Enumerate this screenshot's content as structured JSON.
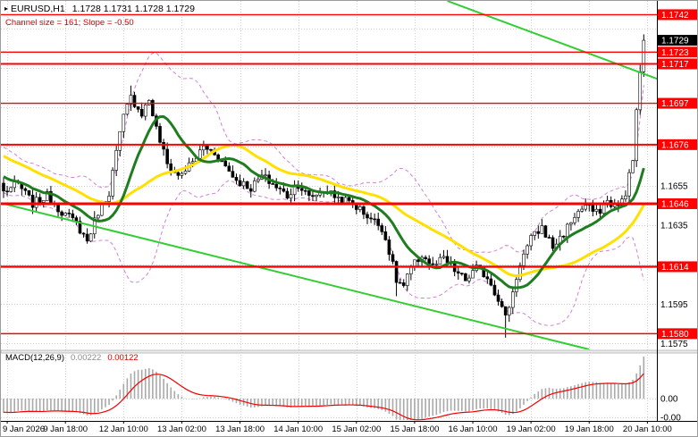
{
  "legend": {
    "symbol": "EURUSD,H1",
    "ohlc": "1.1728 1.1731 1.1728 1.1729",
    "annotation": "Channel size = 161; Slope = -0.50"
  },
  "colors": {
    "level": "#fe0000",
    "trend": "#32cd32",
    "grid": "#cfcfcf",
    "macd_hist": "#a9a9a9",
    "macd_signal": "#f40000"
  },
  "chart_data": {
    "type": "candlestick",
    "symbol": "EURUSD",
    "timeframe": "H1",
    "title": "EURUSD,H1",
    "ohlc_display": {
      "open": "1.1728",
      "high": "1.1731",
      "low": "1.1728",
      "close": "1.1729"
    },
    "x_labels": [
      "9 Jan 2026",
      "9 Jan 18:00",
      "12 Jan 10:00",
      "13 Jan 02:00",
      "13 Jan 18:00",
      "14 Jan 10:00",
      "15 Jan 02:00",
      "15 Jan 18:00",
      "16 Jan 10:00",
      "19 Jan 02:00",
      "19 Jan 18:00",
      "20 Jan 10:00"
    ],
    "y_axis_ticks": [
      "1.1655",
      "1.1635",
      "1.1595",
      "1.1575"
    ],
    "price_range": {
      "top": 1.1749,
      "bottom": 1.1572
    },
    "bars_total": 177,
    "current_price": 1.1729,
    "current_price_label": "1.1729",
    "levels": [
      {
        "label": "1.1742",
        "price": 1.1742,
        "width": 1.4
      },
      {
        "label": "1.1723",
        "price": 1.1723,
        "width": 1.4
      },
      {
        "label": "1.1717",
        "price": 1.1717,
        "width": 2
      },
      {
        "label": "1.1697",
        "price": 1.1697,
        "width": 1.4
      },
      {
        "label": "1.1676",
        "price": 1.1676,
        "width": 2
      },
      {
        "label": "1.1646",
        "price": 1.1646,
        "width": 3
      },
      {
        "label": "1.1614",
        "price": 1.1614,
        "width": 2.4
      },
      {
        "label": "1.1580",
        "price": 1.158,
        "width": 1.4
      }
    ],
    "price_path": [
      [
        0,
        1.1652
      ],
      [
        4,
        1.1656
      ],
      [
        8,
        1.1646
      ],
      [
        12,
        1.165
      ],
      [
        16,
        1.1642
      ],
      [
        20,
        1.1636
      ],
      [
        23,
        1.1627
      ],
      [
        26,
        1.1642
      ],
      [
        29,
        1.1652
      ],
      [
        31,
        1.1672
      ],
      [
        33,
        1.169
      ],
      [
        35,
        1.17
      ],
      [
        38,
        1.1692
      ],
      [
        40,
        1.1699
      ],
      [
        42,
        1.1684
      ],
      [
        45,
        1.1666
      ],
      [
        48,
        1.166
      ],
      [
        52,
        1.1667
      ],
      [
        55,
        1.1675
      ],
      [
        58,
        1.1672
      ],
      [
        61,
        1.1665
      ],
      [
        64,
        1.1658
      ],
      [
        68,
        1.1654
      ],
      [
        71,
        1.166
      ],
      [
        74,
        1.1656
      ],
      [
        78,
        1.165
      ],
      [
        81,
        1.1656
      ],
      [
        84,
        1.1649
      ],
      [
        88,
        1.1653
      ],
      [
        92,
        1.1649
      ],
      [
        96,
        1.1646
      ],
      [
        100,
        1.164
      ],
      [
        104,
        1.1634
      ],
      [
        106,
        1.1622
      ],
      [
        108,
        1.1607
      ],
      [
        110,
        1.1604
      ],
      [
        112,
        1.1613
      ],
      [
        115,
        1.162
      ],
      [
        118,
        1.1614
      ],
      [
        121,
        1.1618
      ],
      [
        124,
        1.1612
      ],
      [
        127,
        1.1607
      ],
      [
        130,
        1.1613
      ],
      [
        133,
        1.1609
      ],
      [
        136,
        1.1598
      ],
      [
        138,
        1.1588
      ],
      [
        140,
        1.1601
      ],
      [
        142,
        1.1616
      ],
      [
        145,
        1.1628
      ],
      [
        148,
        1.1634
      ],
      [
        151,
        1.1624
      ],
      [
        154,
        1.1631
      ],
      [
        157,
        1.164
      ],
      [
        160,
        1.1645
      ],
      [
        163,
        1.1641
      ],
      [
        166,
        1.1647
      ],
      [
        169,
        1.1644
      ],
      [
        171,
        1.1652
      ],
      [
        173,
        1.1668
      ],
      [
        174,
        1.1694
      ],
      [
        175,
        1.1713
      ],
      [
        176,
        1.1729
      ]
    ],
    "wick_extremes": [
      {
        "bar": 35,
        "high": 1.1706
      },
      {
        "bar": 108,
        "low": 1.1599
      },
      {
        "bar": 138,
        "low": 1.1578
      },
      {
        "bar": 176,
        "high": 1.1731
      }
    ],
    "trendlines": [
      {
        "name": "descending-resistance",
        "from": {
          "bar": 122,
          "price": 1.1749
        },
        "to": {
          "bar": 192,
          "price": 1.1701
        }
      },
      {
        "name": "channel-lower",
        "from": {
          "bar": 0,
          "price": 1.1646
        },
        "to": {
          "bar": 161,
          "price": 1.1572
        }
      }
    ],
    "moving_averages": [
      {
        "name": "slow-yellow",
        "period": 34,
        "color": "#ffe000"
      },
      {
        "name": "fast-green",
        "period": 13,
        "color": "#1e7d1e"
      }
    ],
    "bollinger": {
      "period": 20,
      "deviation": 2,
      "color": "#d281d2"
    },
    "history_seed": {
      "bars": 40,
      "from": 1.1694,
      "to": 1.1655
    },
    "macd": {
      "label": "MACD(12,26,9)",
      "main": "0.00222",
      "signal": "0.00122",
      "scale": [
        {
          "label": "0.00",
          "value": 0
        },
        {
          "label": "-0.00",
          "value": -0.001
        }
      ]
    }
  }
}
